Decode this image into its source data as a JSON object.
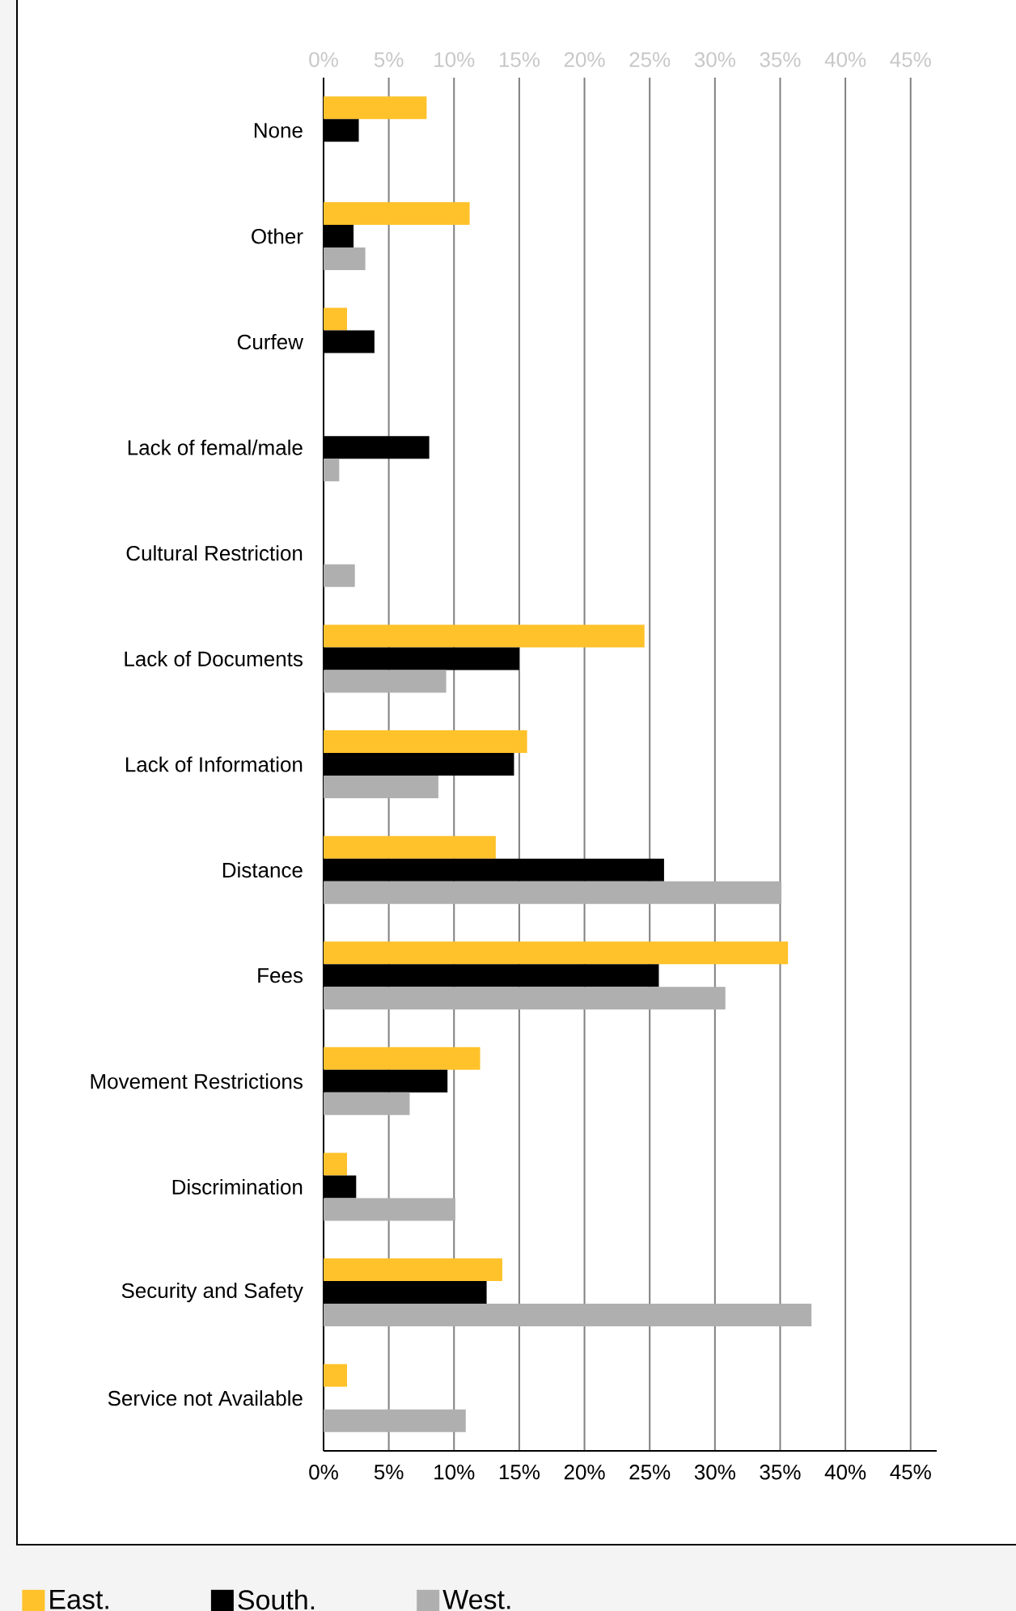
{
  "chart_data": {
    "type": "bar",
    "orientation": "horizontal",
    "categories": [
      "None",
      "Other",
      "Curfew",
      "Lack of femal/male",
      "Cultural Restriction",
      "Lack of Documents",
      "Lack of Information",
      "Distance",
      "Fees",
      "Movement Restrictions",
      "Discrimination",
      "Security and Safety",
      "Service not Available"
    ],
    "series": [
      {
        "name": "East.",
        "color": "#ffc22a",
        "values": [
          7.9,
          11.2,
          1.8,
          null,
          null,
          24.6,
          15.6,
          13.2,
          35.6,
          12.0,
          1.8,
          13.7,
          1.8
        ]
      },
      {
        "name": "South.",
        "color": "#000000",
        "values": [
          2.7,
          2.3,
          3.9,
          8.1,
          null,
          15.0,
          14.6,
          26.1,
          25.7,
          9.5,
          2.5,
          12.5,
          null
        ]
      },
      {
        "name": "West.",
        "color": "#afafaf",
        "values": [
          null,
          3.2,
          null,
          1.2,
          2.4,
          9.4,
          8.8,
          35.1,
          30.8,
          6.6,
          10.1,
          37.4,
          10.9
        ]
      }
    ],
    "xlim": [
      0,
      47
    ],
    "xticks": [
      {
        "value": 0,
        "label": "0%"
      },
      {
        "value": 5,
        "label": "5%"
      },
      {
        "value": 10,
        "label": "10%"
      },
      {
        "value": 15,
        "label": "15%"
      },
      {
        "value": 20,
        "label": "20%"
      },
      {
        "value": 25,
        "label": "25%"
      },
      {
        "value": 30,
        "label": "30%"
      },
      {
        "value": 35,
        "label": "35%"
      },
      {
        "value": 40,
        "label": "40%"
      },
      {
        "value": 45,
        "label": "45%"
      }
    ],
    "x2lim": [
      0,
      47
    ],
    "x2ticks": [
      {
        "value": 0,
        "label": "0%"
      },
      {
        "value": 5,
        "label": "5%"
      },
      {
        "value": 10,
        "label": "10%"
      },
      {
        "value": 15,
        "label": "15%"
      },
      {
        "value": 20,
        "label": "20%"
      },
      {
        "value": 25,
        "label": "25%"
      },
      {
        "value": 30,
        "label": "30%"
      },
      {
        "value": 35,
        "label": "35%"
      },
      {
        "value": 40,
        "label": "40%"
      },
      {
        "value": 45,
        "label": "45%"
      }
    ],
    "grid": "x",
    "legend": "bottom"
  }
}
